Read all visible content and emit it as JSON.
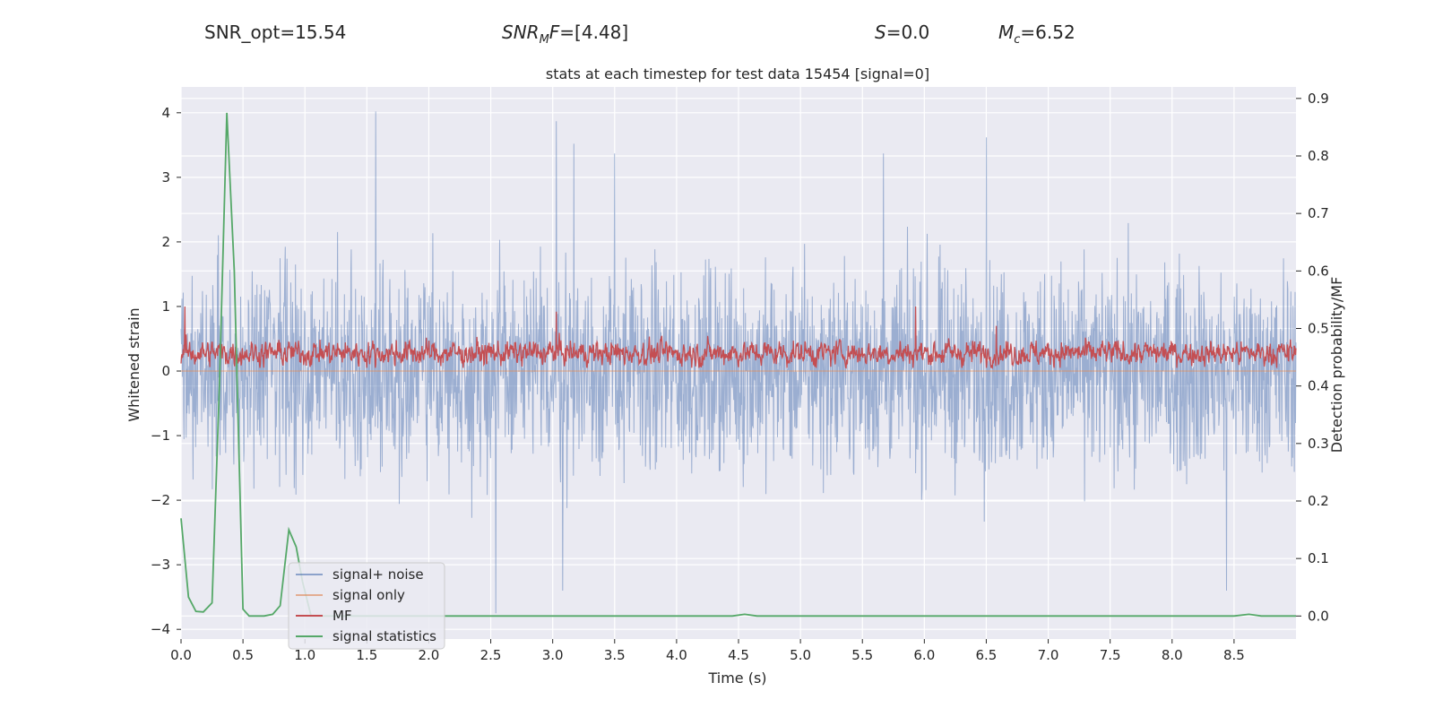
{
  "header": {
    "snr_opt": "SNR_opt=15.54",
    "snr_mf_base": "SNR",
    "snr_mf_sub": "M",
    "snr_mf_rest": "F",
    "snr_mf_value": "=[4.48]",
    "s_label": "S",
    "s_value": "=0.0",
    "mc_label": "M",
    "mc_sub": "c",
    "mc_value": "=6.52"
  },
  "colors": {
    "background": "#eaeaf2",
    "grid": "#ffffff",
    "signal_noise": "#4c72b0",
    "signal_only": "#dd8452",
    "mf": "#c44e52",
    "signal_statistics": "#55a868"
  },
  "chart_data": {
    "type": "line",
    "title": "stats at each timestep for test data 15454 [signal=0]",
    "xlabel": "Time (s)",
    "ylabel": "Whitened strain",
    "y2label": "Detection probability/MF",
    "xlim": [
      0.0,
      9.0
    ],
    "ylim": [
      -4.15,
      4.4
    ],
    "y2lim": [
      -0.04,
      0.92
    ],
    "xticks": [
      0.0,
      0.5,
      1.0,
      1.5,
      2.0,
      2.5,
      3.0,
      3.5,
      4.0,
      4.5,
      5.0,
      5.5,
      6.0,
      6.5,
      7.0,
      7.5,
      8.0,
      8.5
    ],
    "xtick_labels": [
      "0.0",
      "0.5",
      "1.0",
      "1.5",
      "2.0",
      "2.5",
      "3.0",
      "3.5",
      "4.0",
      "4.5",
      "5.0",
      "5.5",
      "6.0",
      "6.5",
      "7.0",
      "7.5",
      "8.0",
      "8.5"
    ],
    "yticks": [
      -4,
      -3,
      -2,
      -1,
      0,
      1,
      2,
      3,
      4
    ],
    "ytick_labels": [
      "−4",
      "−3",
      "−2",
      "−1",
      "0",
      "1",
      "2",
      "3",
      "4"
    ],
    "y2ticks": [
      0.0,
      0.1,
      0.2,
      0.3,
      0.4,
      0.5,
      0.6,
      0.7,
      0.8,
      0.9
    ],
    "y2tick_labels": [
      "0.0",
      "0.1",
      "0.2",
      "0.3",
      "0.4",
      "0.5",
      "0.6",
      "0.7",
      "0.8",
      "0.9"
    ],
    "legend": {
      "location": "lower-left",
      "entries": [
        "signal+ noise",
        "signal only",
        "MF",
        "signal statistics"
      ]
    },
    "series": [
      {
        "name": "signal+ noise",
        "axis": "left",
        "style": "dense-noise",
        "duration": 9.0,
        "typical_range": [
          -2.2,
          2.2
        ],
        "notable_peaks": [
          {
            "x": 1.57,
            "y": 4.02
          },
          {
            "x": 3.03,
            "y": 3.87
          },
          {
            "x": 3.17,
            "y": 3.52
          },
          {
            "x": 3.5,
            "y": 3.37
          },
          {
            "x": 2.54,
            "y": -3.75
          },
          {
            "x": 6.5,
            "y": 3.62
          },
          {
            "x": 5.67,
            "y": 3.37
          },
          {
            "x": 3.08,
            "y": -3.4
          },
          {
            "x": 8.44,
            "y": -3.4
          }
        ]
      },
      {
        "name": "signal only",
        "axis": "left",
        "x": [
          0.0,
          9.0
        ],
        "y": [
          0.0,
          0.0
        ]
      },
      {
        "name": "MF",
        "axis": "left",
        "style": "noise-band",
        "duration": 9.0,
        "typical_range": [
          0.05,
          0.6
        ],
        "notable_peaks": [
          {
            "x": 0.03,
            "y": 1.0
          },
          {
            "x": 5.93,
            "y": 1.0
          },
          {
            "x": 6.58,
            "y": 0.7
          },
          {
            "x": 3.03,
            "y": 0.92
          }
        ]
      },
      {
        "name": "signal statistics",
        "axis": "right",
        "x": [
          0.0,
          0.06,
          0.12,
          0.18,
          0.25,
          0.31,
          0.37,
          0.43,
          0.5,
          0.55,
          0.6,
          0.67,
          0.74,
          0.8,
          0.87,
          0.93,
          0.98,
          1.05,
          1.2,
          1.5,
          2.0,
          2.5,
          3.0,
          3.5,
          4.0,
          4.45,
          4.55,
          4.65,
          5.0,
          6.0,
          7.0,
          8.0,
          8.5,
          8.62,
          8.72,
          8.85,
          9.0
        ],
        "y": [
          0.17,
          0.033,
          0.008,
          0.007,
          0.023,
          0.4,
          0.875,
          0.6,
          0.012,
          0.0,
          0.0,
          0.0,
          0.003,
          0.018,
          0.15,
          0.12,
          0.06,
          0.0,
          0.0,
          0.0,
          0.0,
          0.0,
          0.0,
          0.0,
          0.0,
          0.0,
          0.003,
          0.0,
          0.0,
          0.0,
          0.0,
          0.0,
          0.0,
          0.003,
          0.0,
          0.0,
          0.0
        ]
      }
    ]
  }
}
